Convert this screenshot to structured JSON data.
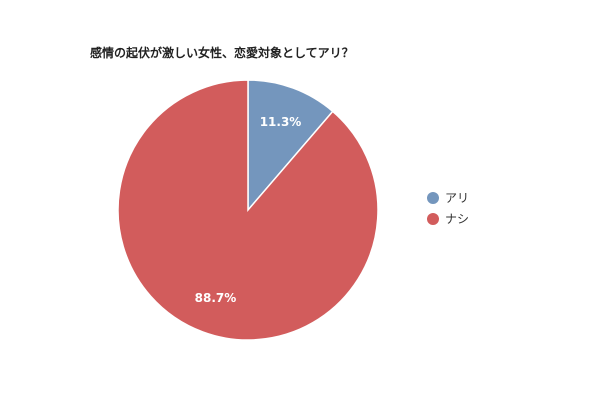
{
  "chart_data": {
    "type": "pie",
    "title": "感情の起伏が激しい女性、恋愛対象としてアリ？",
    "slices": [
      {
        "name": "アリ",
        "value": 11.3,
        "label": "11.3%",
        "color": "#7496bd"
      },
      {
        "name": "ナシ",
        "value": 88.7,
        "label": "88.7%",
        "color": "#d25c5c"
      }
    ],
    "legend_position": "right"
  }
}
